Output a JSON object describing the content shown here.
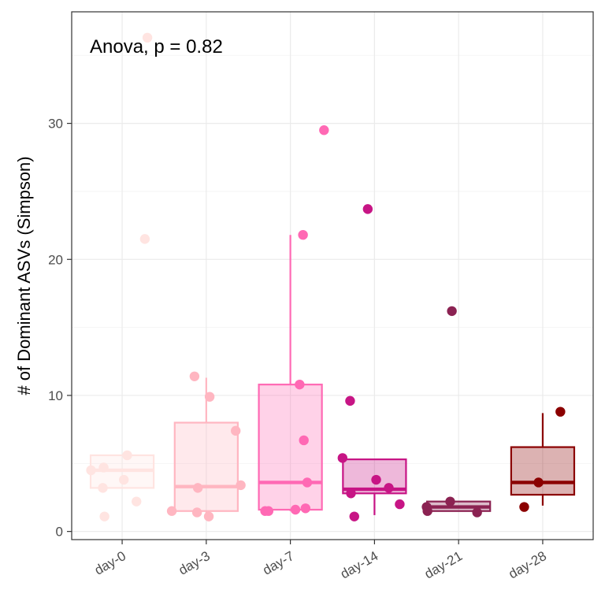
{
  "chart_data": {
    "type": "box",
    "annotation": "Anova, p = 0.82",
    "ylabel": "# of Dominant ASVs (Simpson)",
    "xlabel": "",
    "ylim": [
      -0.6,
      38.2
    ],
    "yticks": [
      0,
      10,
      20,
      30
    ],
    "ytick_labels": [
      "0",
      "10",
      "20",
      "30"
    ],
    "grid": true,
    "categories": [
      "day-0",
      "day-3",
      "day-7",
      "day-14",
      "day-21",
      "day-28"
    ],
    "colors": [
      "#FFE4E1",
      "#FFB6C1",
      "#FF69B4",
      "#C71585",
      "#8B2252",
      "#8B0000"
    ],
    "boxes": [
      {
        "q1": 3.2,
        "median": 4.5,
        "q3": 5.6,
        "whisker_low": 3.2,
        "whisker_high": 5.6
      },
      {
        "q1": 1.5,
        "median": 3.3,
        "q3": 8.0,
        "whisker_low": 1.1,
        "whisker_high": 11.3
      },
      {
        "q1": 1.6,
        "median": 3.6,
        "q3": 10.8,
        "whisker_low": 1.5,
        "whisker_high": 21.8
      },
      {
        "q1": 2.8,
        "median": 3.1,
        "q3": 5.3,
        "whisker_low": 1.2,
        "whisker_high": 5.3
      },
      {
        "q1": 1.5,
        "median": 1.8,
        "q3": 2.2,
        "whisker_low": 1.5,
        "whisker_high": 2.2
      },
      {
        "q1": 2.7,
        "median": 3.6,
        "q3": 6.2,
        "whisker_low": 1.9,
        "whisker_high": 8.7
      }
    ],
    "points": [
      [
        {
          "x": -0.37,
          "y": 4.5
        },
        {
          "x": -0.22,
          "y": 4.7
        },
        {
          "x": -0.23,
          "y": 3.2
        },
        {
          "x": 0.02,
          "y": 3.8
        },
        {
          "x": 0.06,
          "y": 5.6
        },
        {
          "x": 0.17,
          "y": 2.2
        },
        {
          "x": -0.21,
          "y": 1.1
        },
        {
          "x": 0.27,
          "y": 21.5
        },
        {
          "x": 0.3,
          "y": 36.3
        }
      ],
      [
        {
          "x": -0.41,
          "y": 1.5
        },
        {
          "x": -0.14,
          "y": 11.4
        },
        {
          "x": -0.1,
          "y": 3.2
        },
        {
          "x": -0.11,
          "y": 1.4
        },
        {
          "x": 0.03,
          "y": 1.1
        },
        {
          "x": 0.04,
          "y": 9.9
        },
        {
          "x": 0.35,
          "y": 7.4
        },
        {
          "x": 0.41,
          "y": 3.4
        }
      ],
      [
        {
          "x": -0.3,
          "y": 1.5
        },
        {
          "x": -0.26,
          "y": 1.5
        },
        {
          "x": 0.06,
          "y": 1.6
        },
        {
          "x": 0.11,
          "y": 10.8
        },
        {
          "x": 0.15,
          "y": 21.8
        },
        {
          "x": 0.16,
          "y": 6.7
        },
        {
          "x": 0.18,
          "y": 1.7
        },
        {
          "x": 0.2,
          "y": 3.6
        },
        {
          "x": 0.4,
          "y": 29.5
        }
      ],
      [
        {
          "x": -0.38,
          "y": 5.4
        },
        {
          "x": -0.29,
          "y": 9.6
        },
        {
          "x": -0.28,
          "y": 2.8
        },
        {
          "x": -0.24,
          "y": 1.1
        },
        {
          "x": -0.08,
          "y": 23.7
        },
        {
          "x": 0.02,
          "y": 3.8
        },
        {
          "x": 0.17,
          "y": 3.2
        },
        {
          "x": 0.3,
          "y": 2.0
        }
      ],
      [
        {
          "x": -0.38,
          "y": 1.8
        },
        {
          "x": -0.37,
          "y": 1.5
        },
        {
          "x": -0.1,
          "y": 2.2
        },
        {
          "x": -0.08,
          "y": 16.2
        },
        {
          "x": 0.22,
          "y": 1.4
        }
      ],
      [
        {
          "x": -0.22,
          "y": 1.8
        },
        {
          "x": -0.05,
          "y": 3.6
        },
        {
          "x": 0.21,
          "y": 8.8
        }
      ]
    ]
  }
}
